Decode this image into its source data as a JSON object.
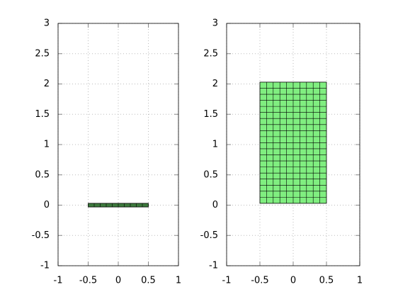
{
  "chart_data": [
    {
      "type": "mesh",
      "x": [
        -0.5,
        0.5
      ],
      "y": [
        -0.03,
        0.03
      ],
      "cols": 10,
      "rows": 1,
      "color": "#3d7a3d",
      "xlim": [
        -1,
        1
      ],
      "ylim": [
        -1,
        3
      ],
      "xticks": [
        -1,
        -0.5,
        0,
        0.5,
        1
      ],
      "yticks": [
        -1,
        -0.5,
        0,
        0.5,
        1,
        1.5,
        2,
        2.5,
        3
      ],
      "grid": true
    },
    {
      "type": "mesh",
      "x": [
        -0.5,
        0.5
      ],
      "y": [
        0.03,
        2.03
      ],
      "cols": 10,
      "rows": 20,
      "color": "#80ee80",
      "xlim": [
        -1,
        1
      ],
      "ylim": [
        -1,
        3
      ],
      "xticks": [
        -1,
        -0.5,
        0,
        0.5,
        1
      ],
      "yticks": [
        -1,
        -0.5,
        0,
        0.5,
        1,
        1.5,
        2,
        2.5,
        3
      ],
      "grid": true
    }
  ]
}
